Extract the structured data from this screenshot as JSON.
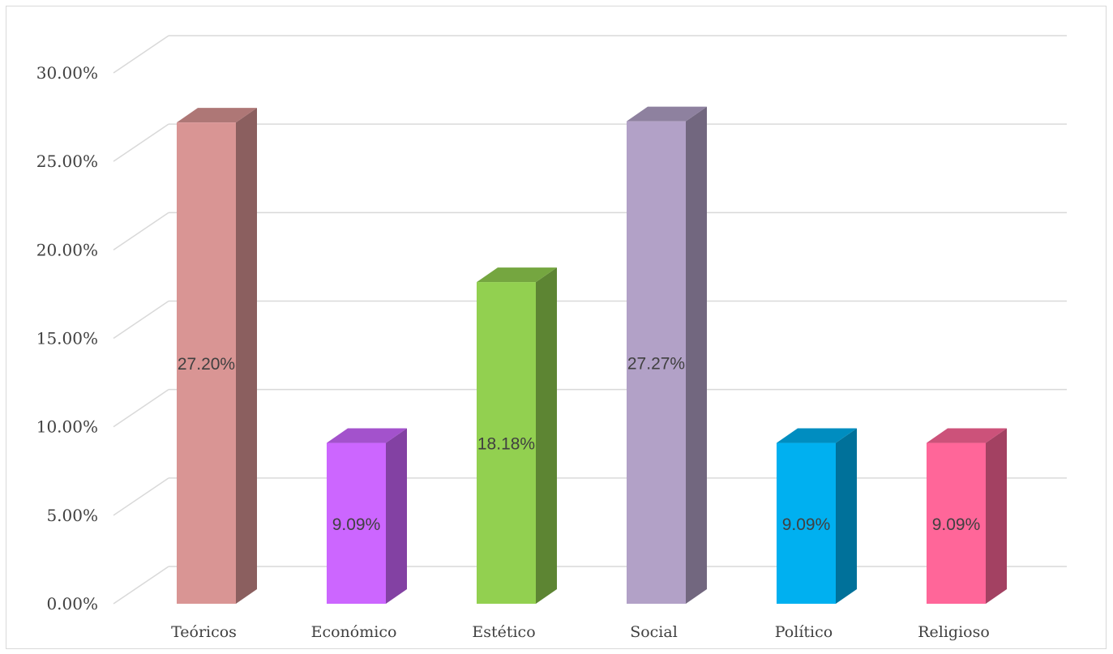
{
  "chart_data": {
    "type": "bar",
    "style": "3d-column",
    "categories": [
      "Teóricos",
      "Económico",
      "Estético",
      "Social",
      "Político",
      "Religioso"
    ],
    "values": [
      27.2,
      9.09,
      18.18,
      27.27,
      9.09,
      9.09
    ],
    "data_labels": [
      "27.20%",
      "9.09%",
      "18.18%",
      "27.27%",
      "9.09%",
      "9.09%"
    ],
    "colors": [
      "#d99594",
      "#cc66ff",
      "#92d050",
      "#b2a1c7",
      "#00b0f0",
      "#ff6699"
    ],
    "ylim": [
      0,
      30
    ],
    "yticks": [
      0,
      5,
      10,
      15,
      20,
      25,
      30
    ],
    "ytick_labels": [
      "0.00%",
      "5.00%",
      "10.00%",
      "15.00%",
      "20.00%",
      "25.00%",
      "30.00%"
    ],
    "grid": true,
    "legend": "none",
    "title": "",
    "xlabel": "",
    "ylabel": ""
  }
}
